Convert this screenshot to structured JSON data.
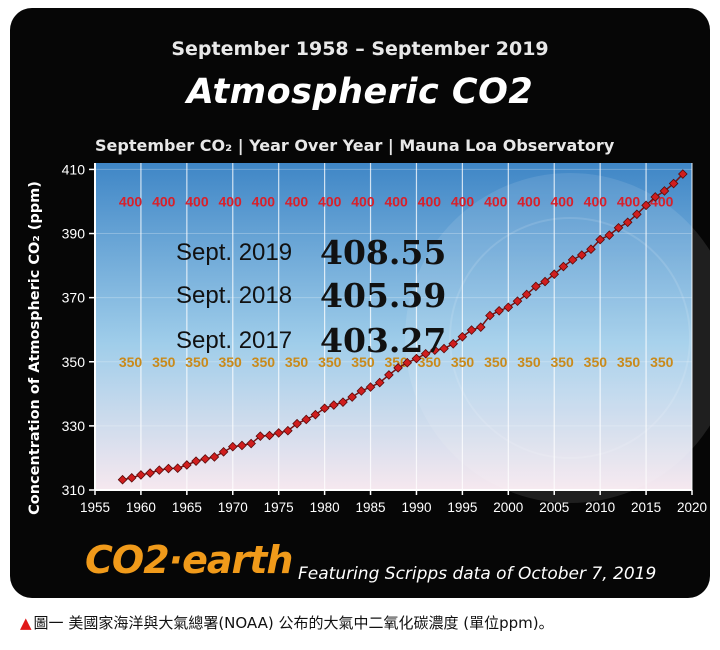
{
  "header": {
    "range": "September 1958 – September 2019",
    "title": "Atmospheric CO2",
    "subtitle": "September CO₂  | Year Over Year  | Mauna Loa Observatory"
  },
  "footer": {
    "brand": "CO2·earth",
    "credit": "Featuring Scripps  data of October 7, 2019"
  },
  "caption": {
    "marker": "▲",
    "text": "圖一 美國家海洋與大氣總署(NOAA) 公布的大氣中二氧化碳濃度 (單位ppm)。"
  },
  "annotations": [
    {
      "label": "Sept. 2019",
      "value": "408.55"
    },
    {
      "label": "Sept. 2018",
      "value": "405.59"
    },
    {
      "label": "Sept. 2017",
      "value": "403.27"
    }
  ],
  "chart_data": {
    "type": "line",
    "ylabel": "Concentration of Atmospheric CO₂ (ppm)",
    "xlim": [
      1955,
      2020
    ],
    "ylim": [
      310,
      412
    ],
    "x_ticks": [
      1955,
      1960,
      1965,
      1970,
      1975,
      1980,
      1985,
      1990,
      1995,
      2000,
      2005,
      2010,
      2015,
      2020
    ],
    "y_ticks": [
      310,
      330,
      350,
      370,
      390,
      410
    ],
    "grid": true,
    "reference_lines": [
      {
        "value": 400,
        "label": "400",
        "color": "#d8202a"
      },
      {
        "value": 350,
        "label": "350",
        "color": "#c98a1a"
      }
    ],
    "series": [
      {
        "color": "#d01e1e",
        "x": [
          1958,
          1959,
          1960,
          1961,
          1962,
          1963,
          1964,
          1965,
          1966,
          1967,
          1968,
          1969,
          1970,
          1971,
          1972,
          1973,
          1974,
          1975,
          1976,
          1977,
          1978,
          1979,
          1980,
          1981,
          1982,
          1983,
          1984,
          1985,
          1986,
          1987,
          1988,
          1989,
          1990,
          1991,
          1992,
          1993,
          1994,
          1995,
          1996,
          1997,
          1998,
          1999,
          2000,
          2001,
          2002,
          2003,
          2004,
          2005,
          2006,
          2007,
          2008,
          2009,
          2010,
          2011,
          2012,
          2013,
          2014,
          2015,
          2016,
          2017,
          2018,
          2019
        ],
        "y": [
          313.2,
          313.8,
          314.7,
          315.3,
          316.2,
          316.7,
          316.8,
          317.8,
          319.0,
          319.7,
          320.3,
          321.9,
          323.5,
          323.9,
          324.5,
          326.8,
          327.0,
          327.8,
          328.5,
          330.7,
          332.0,
          333.5,
          335.5,
          336.5,
          337.4,
          339.0,
          340.9,
          342.1,
          343.5,
          345.9,
          348.1,
          349.7,
          351.0,
          352.5,
          353.6,
          354.1,
          355.6,
          357.8,
          359.9,
          360.8,
          364.4,
          365.9,
          367.0,
          368.9,
          371.0,
          373.5,
          375.0,
          377.3,
          379.7,
          381.8,
          383.3,
          385.1,
          388.1,
          389.5,
          391.8,
          393.5,
          396.0,
          398.8,
          401.4,
          403.27,
          405.59,
          408.55
        ]
      }
    ]
  },
  "colors": {
    "card_bg": "#060606",
    "plot_top": "#3f86c6",
    "plot_mid": "#9fcdea",
    "plot_bottom": "#f6e8ef",
    "brand_orange": "#f09a1a",
    "marker_red": "#d01e1e"
  }
}
